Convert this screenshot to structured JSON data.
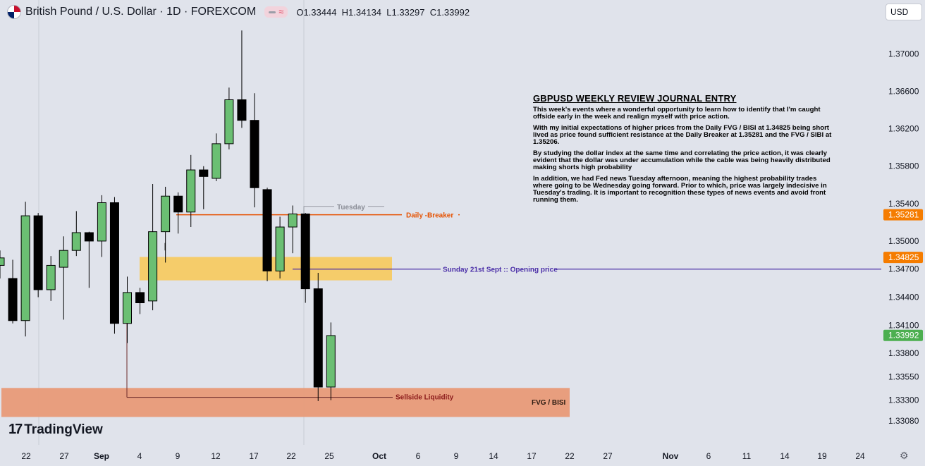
{
  "header": {
    "symbol": "British Pound / U.S. Dollar · 1D · FOREXCOM",
    "ohlc": "O1.33444  H1.34134  L1.33297  C1.33992",
    "currency": "USD"
  },
  "icons": [
    "gbp-usd-flag-icon",
    "indicator-dash-icon",
    "wave-icon",
    "settings-gear-icon",
    "tradingview-logo-icon"
  ],
  "colors": {
    "up": "#6bbf73",
    "down": "#000000",
    "breaker": "#e65100",
    "opening": "#4b2fa8",
    "fvg_zone": "#f7c95c",
    "sellside_zone": "#e89a78",
    "last_price": "#4caf50",
    "breaker_tag": "#f57c00"
  },
  "journal": {
    "title": "GBPUSD WEEKLY REVIEW JOURNAL ENTRY",
    "paragraphs": [
      "This week's events where a wonderful opportunity to learn how to identify that I'm caught offside early in the week and realign myself with price action.",
      "With my initial expectations of higher prices from the Daily FVG / BISI at 1.34825 being short lived as price found sufficient resistance at the Daily Breaker at 1.35281 and the FVG / SIBI at 1.35206.",
      "By studying the dollar index at the same time and correlating the price action, it was clearly evident that the dollar was under accumulation while the cable was being heavily distributed making shorts high probability",
      "In addition, we had Fed news Tuesday afternoon, meaning the highest probability trades where going to be Wednesday going forward. Prior to which, price was largely indecisive in Tuesday's trading.  It is important to recognition these types of news events and avoid front running them."
    ]
  },
  "logo": "TradingView",
  "chart_data": {
    "type": "candlestick",
    "y_range": [
      1.3292,
      1.3735
    ],
    "y_ticks": [
      "1.37000",
      "1.36600",
      "1.36200",
      "1.35800",
      "1.35400",
      "1.35000",
      "1.34700",
      "1.34400",
      "1.34100",
      "1.33800",
      "1.33550",
      "1.33300",
      "1.33080"
    ],
    "y_tick_values": [
      1.37,
      1.366,
      1.362,
      1.358,
      1.354,
      1.35,
      1.347,
      1.344,
      1.341,
      1.338,
      1.3355,
      1.333,
      1.3308
    ],
    "x_ticks": [
      "22",
      "27",
      "Sep",
      "4",
      "9",
      "12",
      "17",
      "22",
      "25",
      "Oct",
      "6",
      "9",
      "14",
      "17",
      "22",
      "27",
      "Nov",
      "6",
      "11",
      "14",
      "19",
      "24"
    ],
    "candles": [
      {
        "o": 1.3474,
        "h": 1.349,
        "l": 1.346,
        "c": 1.3482
      },
      {
        "o": 1.346,
        "h": 1.348,
        "l": 1.3412,
        "c": 1.3415
      },
      {
        "o": 1.3415,
        "h": 1.3542,
        "l": 1.3398,
        "c": 1.3527
      },
      {
        "o": 1.3527,
        "h": 1.353,
        "l": 1.344,
        "c": 1.3448
      },
      {
        "o": 1.3448,
        "h": 1.3484,
        "l": 1.3436,
        "c": 1.3474
      },
      {
        "o": 1.3472,
        "h": 1.3505,
        "l": 1.3416,
        "c": 1.349
      },
      {
        "o": 1.349,
        "h": 1.3532,
        "l": 1.3484,
        "c": 1.3509
      },
      {
        "o": 1.3509,
        "h": 1.351,
        "l": 1.345,
        "c": 1.35
      },
      {
        "o": 1.35,
        "h": 1.3549,
        "l": 1.3483,
        "c": 1.3541
      },
      {
        "o": 1.3541,
        "h": 1.3547,
        "l": 1.3401,
        "c": 1.3412
      },
      {
        "o": 1.3412,
        "h": 1.3462,
        "l": 1.3391,
        "c": 1.3445
      },
      {
        "o": 1.3445,
        "h": 1.345,
        "l": 1.3422,
        "c": 1.3434
      },
      {
        "o": 1.3436,
        "h": 1.3561,
        "l": 1.3426,
        "c": 1.351
      },
      {
        "o": 1.351,
        "h": 1.3558,
        "l": 1.3477,
        "c": 1.3548
      },
      {
        "o": 1.3548,
        "h": 1.3552,
        "l": 1.3508,
        "c": 1.3531
      },
      {
        "o": 1.3531,
        "h": 1.3592,
        "l": 1.3515,
        "c": 1.3576
      },
      {
        "o": 1.3576,
        "h": 1.358,
        "l": 1.3534,
        "c": 1.3569
      },
      {
        "o": 1.3567,
        "h": 1.3615,
        "l": 1.3564,
        "c": 1.3604
      },
      {
        "o": 1.3604,
        "h": 1.3664,
        "l": 1.3598,
        "c": 1.3651
      },
      {
        "o": 1.3651,
        "h": 1.3725,
        "l": 1.3621,
        "c": 1.3629
      },
      {
        "o": 1.3629,
        "h": 1.3658,
        "l": 1.3536,
        "c": 1.3557
      },
      {
        "o": 1.3555,
        "h": 1.3557,
        "l": 1.3457,
        "c": 1.3468
      },
      {
        "o": 1.3468,
        "h": 1.3526,
        "l": 1.346,
        "c": 1.3515
      },
      {
        "o": 1.3515,
        "h": 1.3538,
        "l": 1.3487,
        "c": 1.3529
      },
      {
        "o": 1.3529,
        "h": 1.353,
        "l": 1.3434,
        "c": 1.3449
      },
      {
        "o": 1.3449,
        "h": 1.3466,
        "l": 1.3329,
        "c": 1.3344
      },
      {
        "o": 1.3344,
        "h": 1.3413,
        "l": 1.333,
        "c": 1.3399
      }
    ],
    "levels": [
      {
        "name": "Daily -Breaker",
        "price": 1.35281
      },
      {
        "name": "Sunday 21st Sept :: Opening price",
        "price": 1.347
      },
      {
        "name": "Sellside Liquidity",
        "price": 1.3333
      },
      {
        "name": "Tuesday",
        "price": 1.3537
      }
    ],
    "zones": [
      {
        "name": "",
        "top": 1.3483,
        "bottom": 1.3458
      },
      {
        "name": "FVG / BISI",
        "top": 1.3343,
        "bottom": 1.3312
      }
    ],
    "price_tags": [
      {
        "text": "1.35281",
        "price": 1.35281
      },
      {
        "text": "1.34825",
        "price": 1.34825
      },
      {
        "text": "1.33992",
        "price": 1.33992
      }
    ]
  }
}
